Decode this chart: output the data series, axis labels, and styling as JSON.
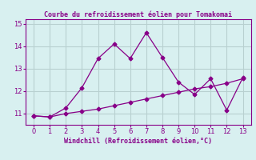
{
  "title": "Courbe du refroidissement éolien pour Tomakomai",
  "xlabel": "Windchill (Refroidissement éolien,°C)",
  "x_line1": [
    0,
    1,
    2,
    3,
    4,
    5,
    6,
    7,
    8,
    9,
    10,
    11,
    12,
    13
  ],
  "y_line1": [
    10.9,
    10.85,
    11.25,
    12.15,
    13.45,
    14.1,
    13.45,
    14.6,
    13.5,
    12.4,
    11.85,
    12.55,
    11.15,
    12.6
  ],
  "x_line2": [
    0,
    1,
    2,
    3,
    4,
    5,
    6,
    7,
    8,
    9,
    10,
    11,
    12,
    13
  ],
  "y_line2": [
    10.9,
    10.85,
    11.0,
    11.1,
    11.2,
    11.35,
    11.5,
    11.65,
    11.8,
    11.95,
    12.1,
    12.2,
    12.35,
    12.55
  ],
  "line_color": "#880088",
  "bg_color": "#d8f0f0",
  "grid_color": "#b8d0d0",
  "ylim": [
    10.5,
    15.2
  ],
  "xlim": [
    -0.5,
    13.5
  ],
  "yticks": [
    11,
    12,
    13,
    14,
    15
  ],
  "xticks": [
    0,
    1,
    2,
    3,
    4,
    5,
    6,
    7,
    8,
    9,
    10,
    11,
    12,
    13
  ]
}
